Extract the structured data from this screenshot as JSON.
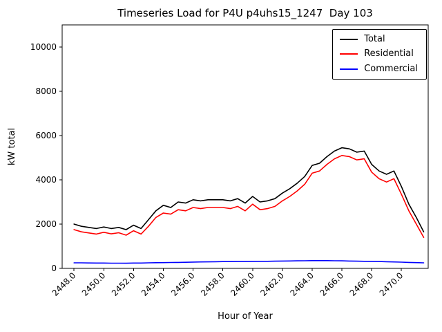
{
  "chart_data": {
    "type": "line",
    "title": "Timeseries Load for P4U p4uhs15_1247  Day 103",
    "xlabel": "Hour of Year",
    "ylabel": "kW total",
    "grid": false,
    "legend_position": "upper right",
    "xlim": [
      2447.2,
      2471.8
    ],
    "ylim": [
      0,
      11000
    ],
    "yticks": [
      0,
      2000,
      4000,
      6000,
      8000,
      10000
    ],
    "xticks": [
      2448,
      2450,
      2452,
      2454,
      2456,
      2458,
      2460,
      2462,
      2464,
      2466,
      2468,
      2470
    ],
    "xtick_labels": [
      "2448.0",
      "2450.0",
      "2452.0",
      "2454.0",
      "2456.0",
      "2458.0",
      "2460.0",
      "2462.0",
      "2464.0",
      "2466.0",
      "2468.0",
      "2470.0"
    ],
    "x_start": 2448.0,
    "x_step": 0.5,
    "series": [
      {
        "name": "Total",
        "color": "#000000",
        "values": [
          2000,
          1900,
          1850,
          1800,
          1870,
          1800,
          1850,
          1750,
          1950,
          1800,
          2200,
          2600,
          2850,
          2750,
          3000,
          2950,
          3100,
          3050,
          3100,
          3100,
          3100,
          3050,
          3150,
          2950,
          3250,
          3000,
          3050,
          3150,
          3400,
          3600,
          3850,
          4150,
          4650,
          4750,
          5050,
          5300,
          5450,
          5400,
          5250,
          5300,
          4700,
          4400,
          4250,
          4400,
          3700,
          2900,
          2300,
          1650
        ]
      },
      {
        "name": "Residential",
        "color": "#ff0000",
        "values": [
          1750,
          1650,
          1600,
          1550,
          1630,
          1560,
          1610,
          1500,
          1700,
          1550,
          1900,
          2300,
          2500,
          2450,
          2650,
          2600,
          2750,
          2700,
          2750,
          2750,
          2750,
          2700,
          2800,
          2600,
          2900,
          2650,
          2700,
          2800,
          3050,
          3250,
          3500,
          3800,
          4300,
          4400,
          4700,
          4950,
          5100,
          5050,
          4900,
          4950,
          4350,
          4050,
          3900,
          4050,
          3350,
          2600,
          2000,
          1400
        ]
      },
      {
        "name": "Commercial",
        "color": "#0000ff",
        "values": [
          250,
          250,
          245,
          240,
          240,
          235,
          235,
          230,
          240,
          240,
          250,
          255,
          260,
          265,
          270,
          275,
          285,
          290,
          295,
          300,
          305,
          305,
          310,
          310,
          315,
          320,
          320,
          325,
          330,
          335,
          340,
          345,
          350,
          350,
          350,
          345,
          340,
          330,
          325,
          320,
          315,
          310,
          300,
          290,
          280,
          270,
          260,
          250
        ]
      }
    ]
  }
}
